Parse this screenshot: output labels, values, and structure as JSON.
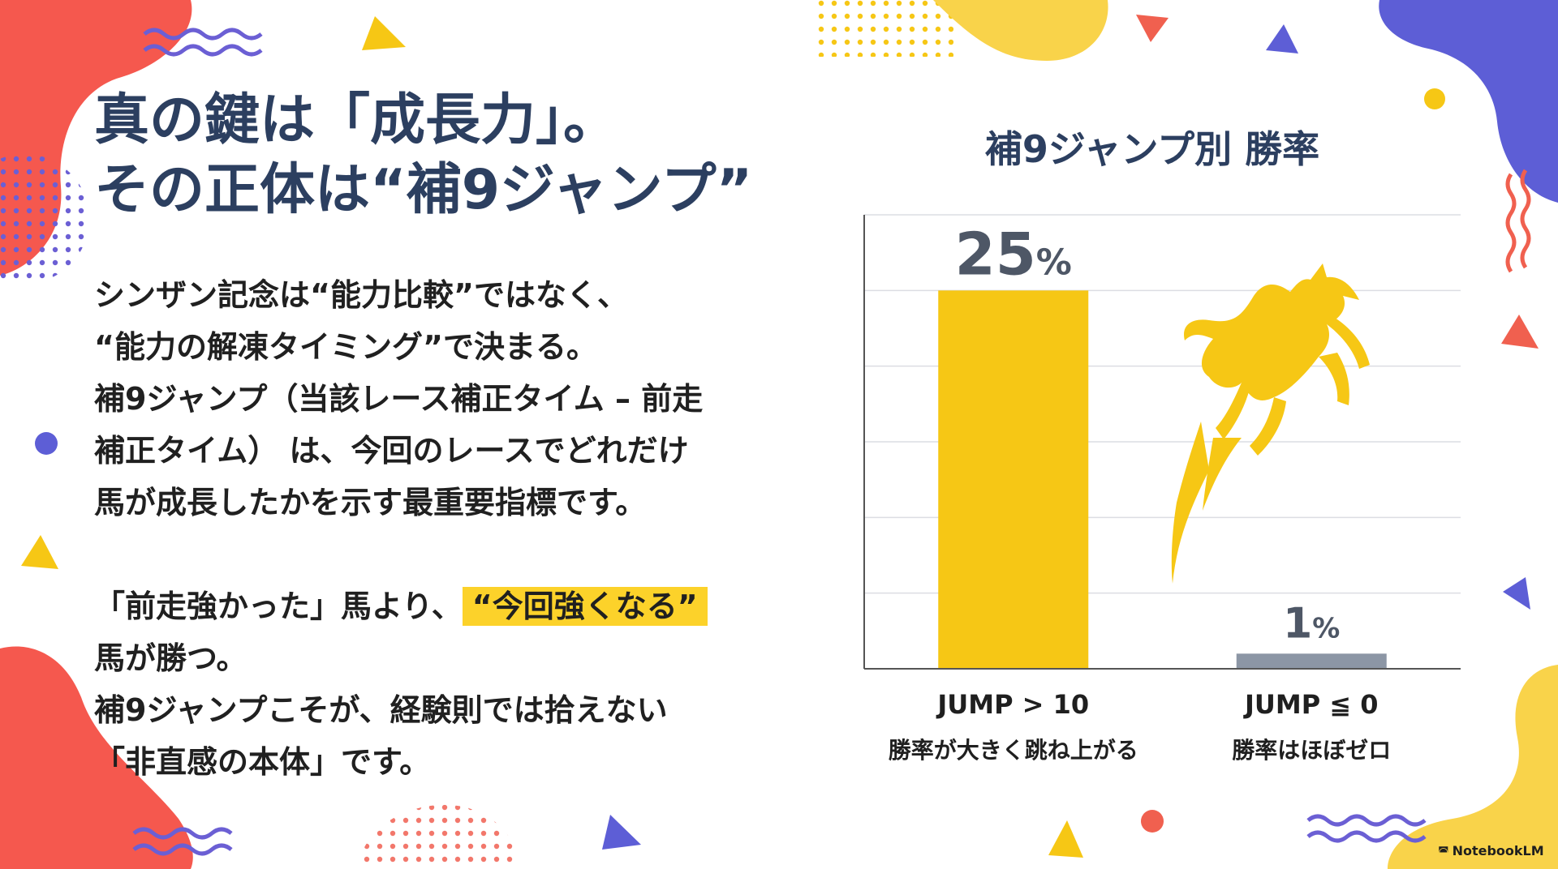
{
  "slide": {
    "title_line1": "真の鍵は「成長力」。",
    "title_line2": "その正体は“補9ジャンプ”",
    "paragraph1": [
      "シンザン記念は“能力比較”ではなく、",
      "“能力の解凍タイミング”で決まる。",
      "補9ジャンプ（当該レース補正タイム – 前走",
      "補正タイム） は、今回のレースでどれだけ",
      "馬が成長したかを示す最重要指標です。"
    ],
    "paragraph2_prefix": "「前走強かった」馬より、",
    "paragraph2_highlight": "“今回強くなる”",
    "paragraph2_rest": [
      "馬が勝つ。",
      "補9ジャンプこそが、経験則では拾えない",
      "「非直感の本体」です。"
    ],
    "brand": "NotebookLM"
  },
  "colors": {
    "accent_yellow": "#f6c715",
    "bar_gray": "#8c96a5",
    "title_navy": "#2c3f60",
    "highlight": "#fcd22a",
    "blob_red": "#f5584e",
    "blob_purple": "#5d5ed6",
    "blob_yellow": "#f9d34a"
  },
  "icons": [
    "jumping-horse-icon",
    "notebooklm-logo-icon"
  ],
  "chart_data": {
    "type": "bar",
    "title": "補9ジャンプ別 勝率",
    "categories": [
      "JUMP > 10",
      "JUMP ≦ 0"
    ],
    "category_sublabels": [
      "勝率が大きく跳ね上がる",
      "勝率はほぼゼロ"
    ],
    "values": [
      25,
      1
    ],
    "value_unit": "%",
    "bar_colors": [
      "#f6c715",
      "#8c96a5"
    ],
    "ylim": [
      0,
      30
    ],
    "grid": true,
    "legend": "none"
  }
}
